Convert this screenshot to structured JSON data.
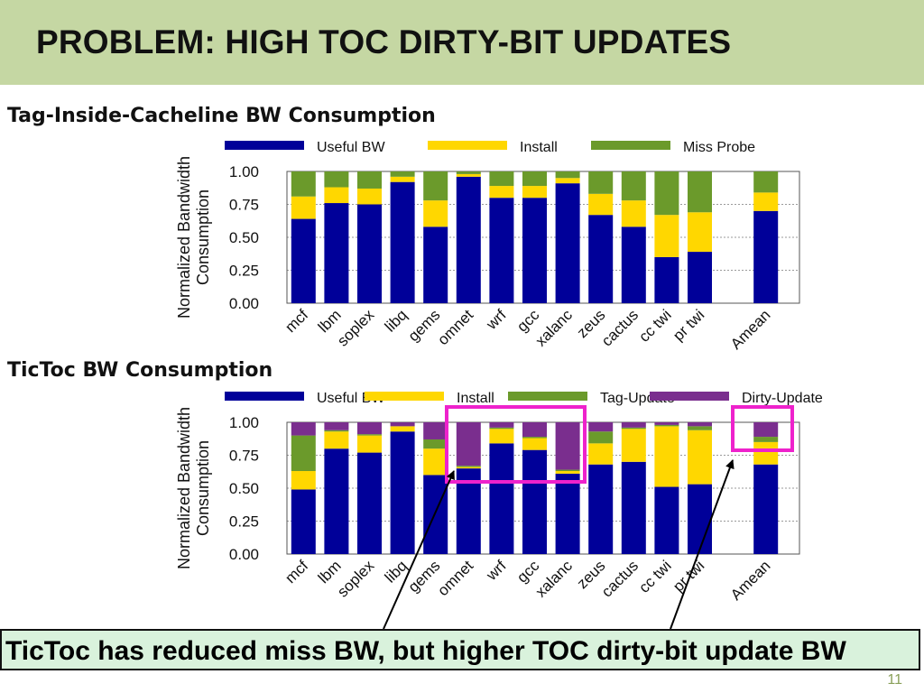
{
  "slide": {
    "title": "PROBLEM: HIGH TOC DIRTY-BIT UPDATES",
    "footer": "TicToc has reduced miss BW, but higher TOC dirty-bit update BW",
    "page_number": "11"
  },
  "colors": {
    "header_bg": "#c5d7a3",
    "useful": "#000099",
    "install": "#ffd700",
    "green": "#6b9a2b",
    "purple": "#7a2e8e",
    "highlight": "#ee22cc",
    "footer_bg": "#d9f2dc"
  },
  "chart_data": [
    {
      "type": "bar",
      "stacked": true,
      "title": "Tag-Inside-Cacheline BW Consumption",
      "ylabel": "Normalized Bandwidth Consumption",
      "ylabel_lines": [
        "Normalized Bandwidth",
        "Consumption"
      ],
      "ylim": [
        0,
        1
      ],
      "yticks": [
        "1.00",
        "0.75",
        "0.50",
        "0.25",
        "0.00"
      ],
      "grid": true,
      "legend_position": "top",
      "categories": [
        "mcf",
        "lbm",
        "soplex",
        "libq",
        "gems",
        "omnet",
        "wrf",
        "gcc",
        "xalanc",
        "zeus",
        "cactus",
        "cc twi",
        "pr twi",
        "",
        "Amean"
      ],
      "series": [
        {
          "name": "Useful BW",
          "color_key": "useful",
          "values": [
            0.64,
            0.76,
            0.75,
            0.92,
            0.58,
            0.96,
            0.8,
            0.8,
            0.91,
            0.67,
            0.58,
            0.35,
            0.39,
            null,
            0.7
          ]
        },
        {
          "name": "Install",
          "color_key": "install",
          "values": [
            0.17,
            0.12,
            0.12,
            0.04,
            0.2,
            0.02,
            0.09,
            0.09,
            0.04,
            0.16,
            0.2,
            0.32,
            0.3,
            null,
            0.14
          ]
        },
        {
          "name": "Miss Probe",
          "color_key": "green",
          "values": [
            0.19,
            0.12,
            0.13,
            0.04,
            0.22,
            0.02,
            0.11,
            0.11,
            0.05,
            0.17,
            0.22,
            0.33,
            0.31,
            null,
            0.16
          ]
        }
      ]
    },
    {
      "type": "bar",
      "stacked": true,
      "title": "TicToc BW Consumption",
      "ylabel": "Normalized Bandwidth Consumption",
      "ylabel_lines": [
        "Normalized Bandwidth",
        "Consumption"
      ],
      "ylim": [
        0,
        1
      ],
      "yticks": [
        "1.00",
        "0.75",
        "0.50",
        "0.25",
        "0.00"
      ],
      "grid": true,
      "legend_position": "top",
      "categories": [
        "mcf",
        "lbm",
        "soplex",
        "libq",
        "gems",
        "omnet",
        "wrf",
        "gcc",
        "xalanc",
        "zeus",
        "cactus",
        "cc twi",
        "pr twi",
        "",
        "Amean"
      ],
      "series": [
        {
          "name": "Useful BW",
          "color_key": "useful",
          "values": [
            0.49,
            0.8,
            0.77,
            0.93,
            0.6,
            0.65,
            0.84,
            0.79,
            0.61,
            0.68,
            0.7,
            0.51,
            0.53,
            null,
            0.68
          ]
        },
        {
          "name": "Install",
          "color_key": "install",
          "values": [
            0.14,
            0.13,
            0.13,
            0.04,
            0.2,
            0.01,
            0.11,
            0.09,
            0.02,
            0.16,
            0.25,
            0.46,
            0.41,
            null,
            0.17
          ]
        },
        {
          "name": "Tag-Update",
          "color_key": "green",
          "values": [
            0.27,
            0.01,
            0.01,
            0.0,
            0.07,
            0.01,
            0.01,
            0.01,
            0.01,
            0.09,
            0.01,
            0.01,
            0.03,
            null,
            0.04
          ]
        },
        {
          "name": "Dirty-Update",
          "color_key": "purple",
          "values": [
            0.1,
            0.06,
            0.09,
            0.03,
            0.13,
            0.33,
            0.04,
            0.11,
            0.36,
            0.07,
            0.04,
            0.02,
            0.03,
            null,
            0.11
          ]
        }
      ]
    }
  ]
}
